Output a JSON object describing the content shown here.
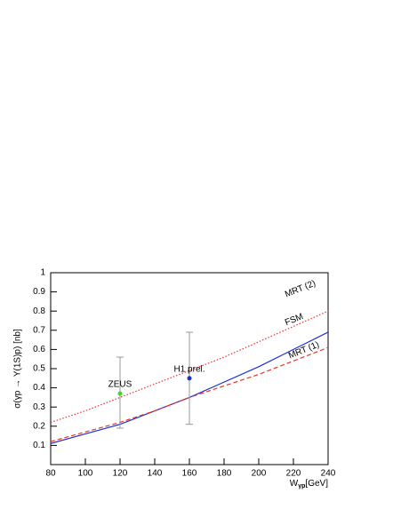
{
  "chart_data": {
    "type": "line",
    "y_label": "σ(γp → Υ(1S)p) [nb]",
    "x_label": {
      "main": "W",
      "sub": "γp",
      "unit": "[GeV]"
    },
    "x": [
      80,
      100,
      120,
      140,
      160,
      180,
      200,
      220,
      240
    ],
    "series": [
      {
        "name": "MRT (2)",
        "color": "#e8332a",
        "style": "dotted",
        "values": [
          0.22,
          0.28,
          0.35,
          0.42,
          0.49,
          0.56,
          0.64,
          0.72,
          0.8
        ]
      },
      {
        "name": "FSM",
        "color": "#1f2fd6",
        "style": "solid",
        "values": [
          0.11,
          0.16,
          0.21,
          0.28,
          0.35,
          0.43,
          0.51,
          0.6,
          0.69
        ]
      },
      {
        "name": "MRT (1)",
        "color": "#e8332a",
        "style": "dashed",
        "values": [
          0.12,
          0.17,
          0.22,
          0.28,
          0.35,
          0.41,
          0.47,
          0.54,
          0.61
        ]
      }
    ],
    "points": [
      {
        "name": "ZEUS",
        "color": "#33dd33",
        "x": 120,
        "y": 0.37,
        "error": [
          0.18,
          0.19
        ]
      },
      {
        "name": "H1 prel.",
        "color": "#1f2fd6",
        "x": 160,
        "y": 0.45,
        "error": [
          0.24,
          0.24
        ]
      }
    ],
    "xlim": [
      80,
      240
    ],
    "ylim": [
      0,
      1
    ],
    "xticks": [
      80,
      100,
      120,
      140,
      160,
      180,
      200,
      220,
      240
    ],
    "yticks": [
      0.1,
      0.2,
      0.3,
      0.4,
      0.5,
      0.6,
      0.7,
      0.8,
      0.9,
      1
    ]
  }
}
